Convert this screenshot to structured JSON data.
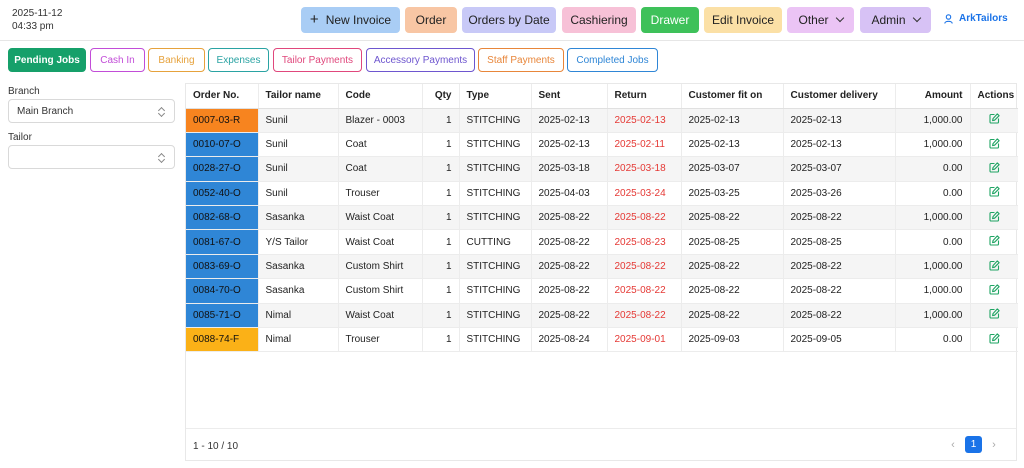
{
  "header": {
    "date": "2025-11-12",
    "time": "04:33 pm",
    "user": "ArkTailors",
    "nav": [
      {
        "label": "New Invoice",
        "icon": "plus-icon",
        "color": "#a9cdf5"
      },
      {
        "label": "Order",
        "color": "#f8c6a4"
      },
      {
        "label": "Orders by Date",
        "color": "#c8c9f7"
      },
      {
        "label": "Cashiering",
        "color": "#f7c1d7"
      },
      {
        "label": "Drawer",
        "color": "#3ec15a"
      },
      {
        "label": "Edit Invoice",
        "color": "#fbe0a6"
      },
      {
        "label": "Other",
        "color": "#ebc4f5",
        "dropdown": true
      },
      {
        "label": "Admin",
        "color": "#d7c2f5",
        "dropdown": true
      }
    ]
  },
  "tabs": [
    {
      "label": "Pending Jobs",
      "active": true,
      "color": "#16a06a"
    },
    {
      "label": "Cash In",
      "color": "#c24dd8"
    },
    {
      "label": "Banking",
      "color": "#e6a23c"
    },
    {
      "label": "Expenses",
      "color": "#2aa3a3"
    },
    {
      "label": "Tailor Payments",
      "color": "#e0477c"
    },
    {
      "label": "Accessory Payments",
      "color": "#6e56cf"
    },
    {
      "label": "Staff Payments",
      "color": "#e8863a"
    },
    {
      "label": "Completed Jobs",
      "color": "#2f86d6"
    }
  ],
  "filters": {
    "branch_label": "Branch",
    "branch_value": "Main Branch",
    "tailor_label": "Tailor",
    "tailor_value": ""
  },
  "table": {
    "columns": [
      "Order No.",
      "Tailor name",
      "Code",
      "Qty",
      "Type",
      "Sent",
      "Return",
      "Customer fit on",
      "Customer delivery",
      "Amount",
      "Actions"
    ],
    "rows": [
      {
        "order": "0007-03-R",
        "order_color": "#f7841f",
        "tailor": "Sunil",
        "code": "Blazer - 0003",
        "qty": "1",
        "type": "STITCHING",
        "sent": "2025-02-13",
        "return": "2025-02-13",
        "fit": "2025-02-13",
        "delivery": "2025-02-13",
        "amount": "1,000.00"
      },
      {
        "order": "0010-07-O",
        "order_color": "#2f86d6",
        "tailor": "Sunil",
        "code": "Coat",
        "qty": "1",
        "type": "STITCHING",
        "sent": "2025-02-13",
        "return": "2025-02-11",
        "fit": "2025-02-13",
        "delivery": "2025-02-13",
        "amount": "1,000.00"
      },
      {
        "order": "0028-27-O",
        "order_color": "#2f86d6",
        "tailor": "Sunil",
        "code": "Coat",
        "qty": "1",
        "type": "STITCHING",
        "sent": "2025-03-18",
        "return": "2025-03-18",
        "fit": "2025-03-07",
        "delivery": "2025-03-07",
        "amount": "0.00"
      },
      {
        "order": "0052-40-O",
        "order_color": "#2f86d6",
        "tailor": "Sunil",
        "code": "Trouser",
        "qty": "1",
        "type": "STITCHING",
        "sent": "2025-04-03",
        "return": "2025-03-24",
        "fit": "2025-03-25",
        "delivery": "2025-03-26",
        "amount": "0.00"
      },
      {
        "order": "0082-68-O",
        "order_color": "#2f86d6",
        "tailor": "Sasanka",
        "code": "Waist Coat",
        "qty": "1",
        "type": "STITCHING",
        "sent": "2025-08-22",
        "return": "2025-08-22",
        "fit": "2025-08-22",
        "delivery": "2025-08-22",
        "amount": "1,000.00"
      },
      {
        "order": "0081-67-O",
        "order_color": "#2f86d6",
        "tailor": "Y/S Tailor",
        "code": "Waist Coat",
        "qty": "1",
        "type": "CUTTING",
        "sent": "2025-08-22",
        "return": "2025-08-23",
        "fit": "2025-08-25",
        "delivery": "2025-08-25",
        "amount": "0.00"
      },
      {
        "order": "0083-69-O",
        "order_color": "#2f86d6",
        "tailor": "Sasanka",
        "code": "Custom Shirt",
        "qty": "1",
        "type": "STITCHING",
        "sent": "2025-08-22",
        "return": "2025-08-22",
        "fit": "2025-08-22",
        "delivery": "2025-08-22",
        "amount": "1,000.00"
      },
      {
        "order": "0084-70-O",
        "order_color": "#2f86d6",
        "tailor": "Sasanka",
        "code": "Custom Shirt",
        "qty": "1",
        "type": "STITCHING",
        "sent": "2025-08-22",
        "return": "2025-08-22",
        "fit": "2025-08-22",
        "delivery": "2025-08-22",
        "amount": "1,000.00"
      },
      {
        "order": "0085-71-O",
        "order_color": "#2f86d6",
        "tailor": "Nimal",
        "code": "Waist Coat",
        "qty": "1",
        "type": "STITCHING",
        "sent": "2025-08-22",
        "return": "2025-08-22",
        "fit": "2025-08-22",
        "delivery": "2025-08-22",
        "amount": "1,000.00"
      },
      {
        "order": "0088-74-F",
        "order_color": "#fbb117",
        "tailor": "Nimal",
        "code": "Trouser",
        "qty": "1",
        "type": "STITCHING",
        "sent": "2025-08-24",
        "return": "2025-09-01",
        "fit": "2025-09-03",
        "delivery": "2025-09-05",
        "amount": "0.00"
      }
    ]
  },
  "pagination": {
    "info": "1 - 10 / 10",
    "current_page": "1",
    "prev": "‹",
    "next": "›"
  }
}
